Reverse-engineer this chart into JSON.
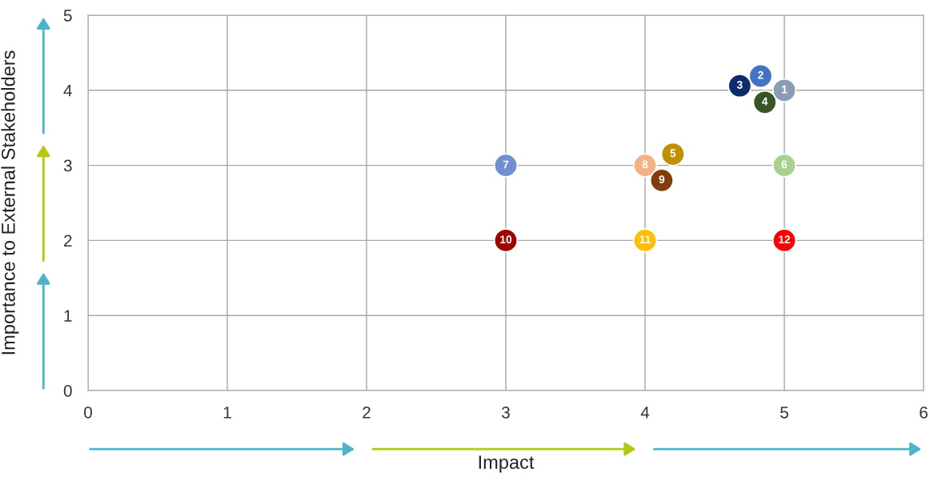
{
  "chart_data": {
    "type": "scatter",
    "xlabel": "Impact",
    "ylabel": "Importance to External Stakeholders",
    "xlim": [
      0,
      6
    ],
    "ylim": [
      0,
      5
    ],
    "xticks": [
      0,
      1,
      2,
      3,
      4,
      5,
      6
    ],
    "yticks": [
      0,
      1,
      2,
      3,
      4,
      5
    ],
    "grid": true,
    "legend": false,
    "marker": "circle",
    "series": [
      {
        "name": "1",
        "color": "#8a9bb5",
        "x": [
          5.0
        ],
        "values": [
          4.0
        ]
      },
      {
        "name": "2",
        "color": "#4472c4",
        "x": [
          4.83
        ],
        "values": [
          4.19
        ]
      },
      {
        "name": "3",
        "color": "#0d2c6b",
        "x": [
          4.68
        ],
        "values": [
          4.06
        ]
      },
      {
        "name": "4",
        "color": "#375623",
        "x": [
          4.86
        ],
        "values": [
          3.84
        ]
      },
      {
        "name": "5",
        "color": "#bf9000",
        "x": [
          4.2
        ],
        "values": [
          3.15
        ]
      },
      {
        "name": "6",
        "color": "#a9d18e",
        "x": [
          5.0
        ],
        "values": [
          3.0
        ]
      },
      {
        "name": "7",
        "color": "#6f8fcf",
        "x": [
          3.0
        ],
        "values": [
          3.0
        ]
      },
      {
        "name": "8",
        "color": "#f4b183",
        "x": [
          4.0
        ],
        "values": [
          3.0
        ]
      },
      {
        "name": "9",
        "color": "#843c0c",
        "x": [
          4.12
        ],
        "values": [
          2.8
        ]
      },
      {
        "name": "10",
        "color": "#a00000",
        "x": [
          3.0
        ],
        "values": [
          2.0
        ]
      },
      {
        "name": "11",
        "color": "#ffc000",
        "x": [
          4.0
        ],
        "values": [
          2.0
        ]
      },
      {
        "name": "12",
        "color": "#ff0000",
        "x": [
          5.0
        ],
        "values": [
          2.0
        ]
      }
    ]
  }
}
